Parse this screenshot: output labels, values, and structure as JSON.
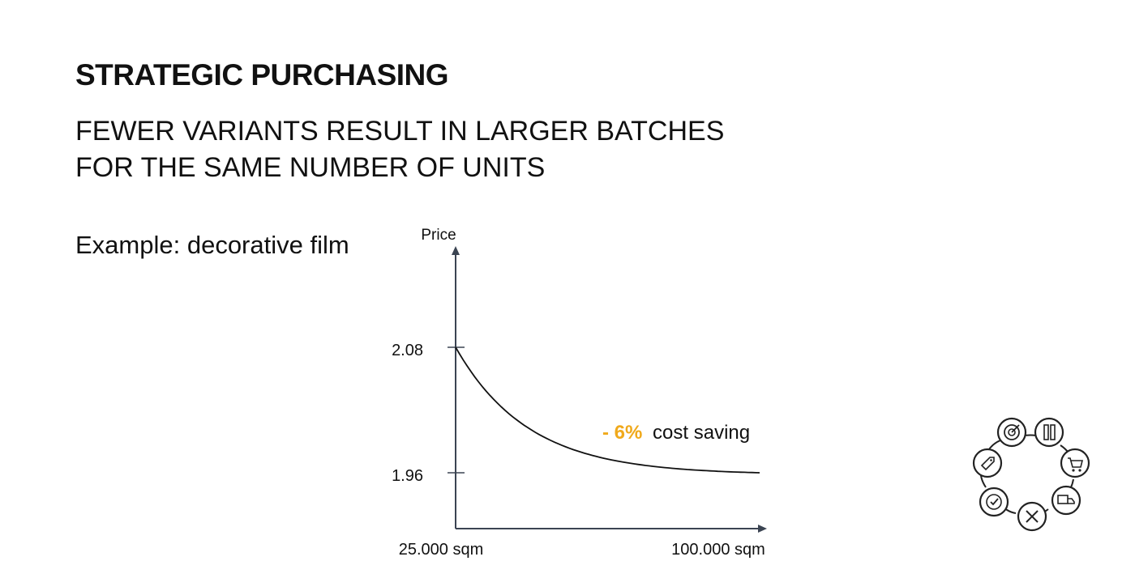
{
  "slide": {
    "title": "STRATEGIC PURCHASING",
    "subtitle_lines": [
      "FEWER VARIANTS RESULT IN LARGER BATCHES",
      "FOR THE SAME NUMBER OF UNITS"
    ],
    "example_label": "Example: decorative film"
  },
  "chart_data": {
    "type": "line",
    "ylabel": "Price",
    "xlabel": "",
    "y_ticks": [
      2.08,
      1.96
    ],
    "x_tick_labels": [
      "25.000 sqm",
      "100.000 sqm"
    ],
    "x": [
      25000,
      100000
    ],
    "series": [
      {
        "values": [
          2.08,
          1.96
        ]
      }
    ],
    "curve": "convex decreasing",
    "annotation": {
      "highlight": "- 6%",
      "text": "cost saving",
      "highlight_color": "#f0a91b"
    },
    "grid": false
  },
  "badge": {
    "icons": [
      "target-icon",
      "ruler-pencil-icon",
      "cart-icon",
      "truck-icon",
      "tools-icon",
      "check-icon",
      "price-tag-icon"
    ]
  }
}
